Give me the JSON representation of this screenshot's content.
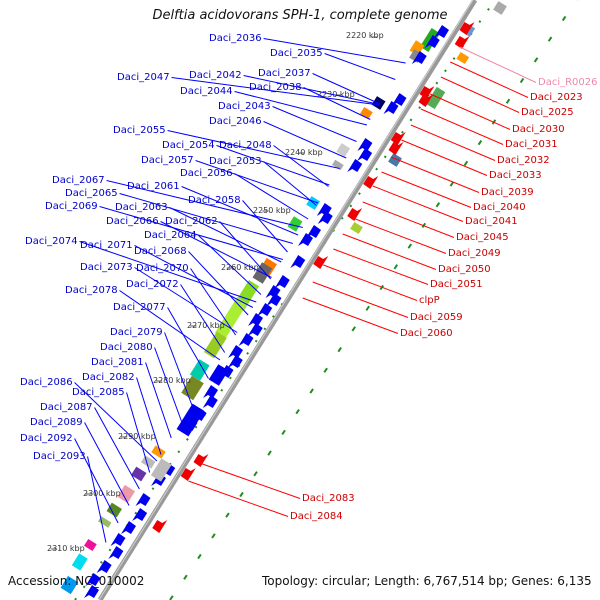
{
  "title": "Delftia acidovorans SPH-1, complete genome",
  "footer": {
    "accession": "Accession: NC_010002",
    "summary": "Topology: circular; Length: 6,767,514 bp; Genes: 6,135"
  },
  "colors": {
    "forward_label": "#0000cc",
    "reverse_label": "#cc0000",
    "rna_label": "#ee88aa",
    "forward_gene": "#0000ee",
    "reverse_gene": "#ee0000",
    "backbone": "#999999",
    "gc_tick": "#228b22",
    "connector_forward": "#0000ff",
    "connector_reverse": "#ff0000"
  },
  "kbp_markers": [
    "2220 kbp",
    "2230 kbp",
    "2240 kbp",
    "2250 kbp",
    "2260 kbp",
    "2270 kbp",
    "2280 kbp",
    "2290 kbp",
    "2300 kbp",
    "2310 kbp"
  ],
  "forward_genes": [
    "Daci_2036",
    "Daci_2035",
    "Daci_2047",
    "Daci_2042",
    "Daci_2037",
    "Daci_2038",
    "Daci_2044",
    "Daci_2043",
    "Daci_2046",
    "Daci_2055",
    "Daci_2054",
    "Daci_2048",
    "Daci_2057",
    "Daci_2053",
    "Daci_2056",
    "Daci_2067",
    "Daci_2061",
    "Daci_2065",
    "Daci_2058",
    "Daci_2069",
    "Daci_2063",
    "Daci_2066",
    "Daci_2062",
    "Daci_2064",
    "Daci_2074",
    "Daci_2071",
    "Daci_2068",
    "Daci_2073",
    "Daci_2070",
    "Daci_2072",
    "Daci_2078",
    "Daci_2077",
    "Daci_2079",
    "Daci_2080",
    "Daci_2081",
    "Daci_2082",
    "Daci_2086",
    "Daci_2085",
    "Daci_2087",
    "Daci_2089",
    "Daci_2092",
    "Daci_2093"
  ],
  "reverse_genes": [
    "Daci_R0026",
    "Daci_2023",
    "Daci_2025",
    "Daci_2030",
    "Daci_2031",
    "Daci_2032",
    "Daci_2033",
    "Daci_2039",
    "Daci_2040",
    "Daci_2041",
    "Daci_2045",
    "Daci_2049",
    "Daci_2050",
    "Daci_2051",
    "clpP",
    "Daci_2059",
    "Daci_2060",
    "Daci_2083",
    "Daci_2084"
  ]
}
